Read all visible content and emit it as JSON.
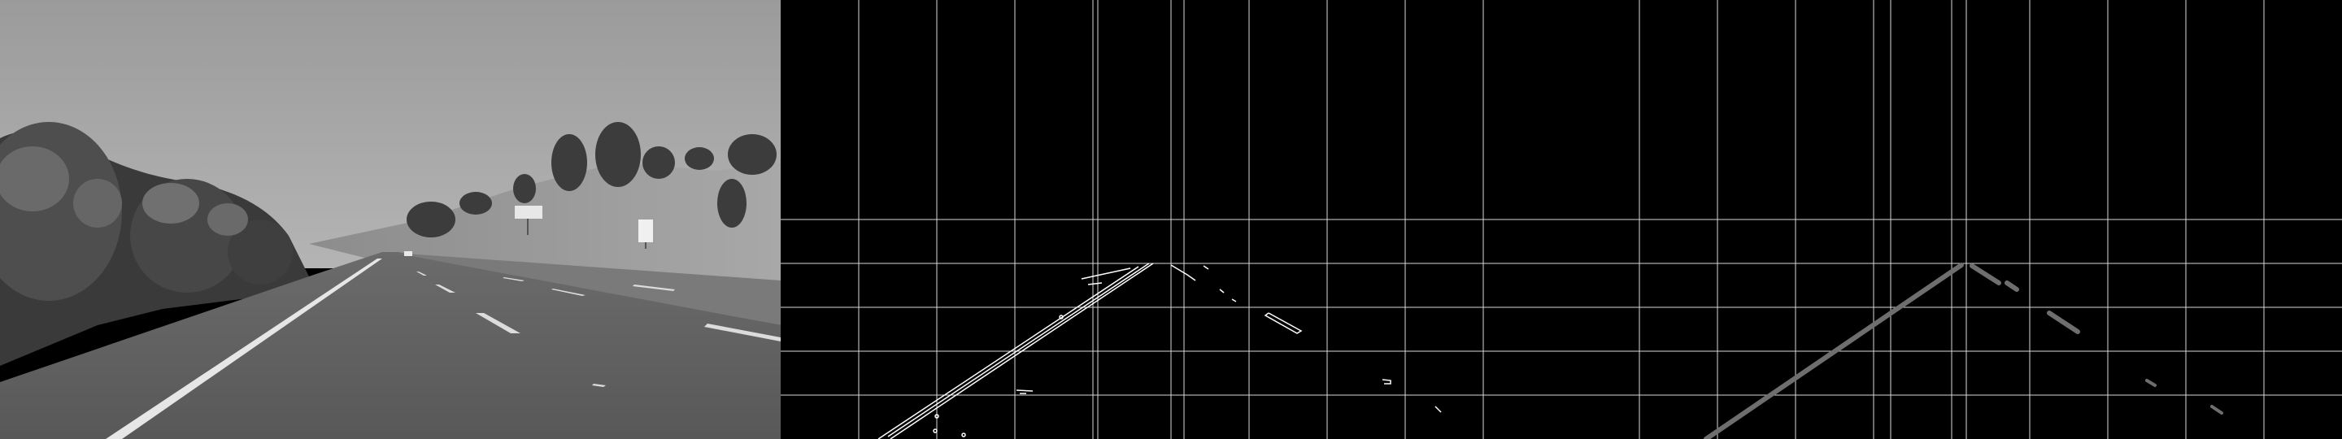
{
  "panels": [
    {
      "kind": "grayscale-road-photo",
      "content": [
        "sky",
        "trees",
        "hill",
        "road",
        "lane-markings",
        "road-sign",
        "distant-car"
      ]
    },
    {
      "kind": "canny-edges-with-grid",
      "content": [
        "edge-lines",
        "grid-overlay"
      ]
    },
    {
      "kind": "hough-lane-lines-with-grid",
      "content": [
        "lane-line-left",
        "lane-line-right-segments",
        "grid-overlay"
      ]
    }
  ],
  "colors": {
    "background": "#000000",
    "grid": "#d9d9d9",
    "edge": "#ffffff",
    "lane_line": "#6e6e6e"
  }
}
